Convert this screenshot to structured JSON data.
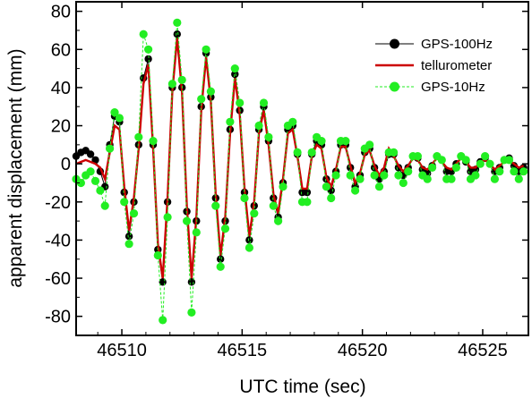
{
  "chart_data": {
    "type": "line",
    "xlabel": "UTC time (sec)",
    "ylabel": "apparent displacement (mm)",
    "xlim": [
      46508.1,
      46526.9
    ],
    "ylim": [
      -90,
      85
    ],
    "xticks": [
      46510,
      46515,
      46520,
      46525
    ],
    "yticks": [
      -80,
      -60,
      -40,
      -20,
      0,
      20,
      40,
      60,
      80
    ],
    "grid": false,
    "legend_position": "top-right",
    "series": [
      {
        "name": "GPS-100Hz",
        "color": "#000000",
        "marker": "circle",
        "x": [
          46508.1,
          46508.3,
          46508.5,
          46508.7,
          46508.9,
          46509.1,
          46509.3,
          46509.5,
          46509.7,
          46509.9,
          46510.1,
          46510.3,
          46510.5,
          46510.7,
          46510.9,
          46511.1,
          46511.3,
          46511.5,
          46511.7,
          46511.9,
          46512.1,
          46512.3,
          46512.5,
          46512.7,
          46512.9,
          46513.1,
          46513.3,
          46513.5,
          46513.7,
          46513.9,
          46514.1,
          46514.3,
          46514.5,
          46514.7,
          46514.9,
          46515.1,
          46515.3,
          46515.5,
          46515.7,
          46515.9,
          46516.1,
          46516.3,
          46516.5,
          46516.7,
          46516.9,
          46517.1,
          46517.3,
          46517.5,
          46517.7,
          46517.9,
          46518.1,
          46518.3,
          46518.5,
          46518.7,
          46518.9,
          46519.1,
          46519.3,
          46519.5,
          46519.7,
          46519.9,
          46520.1,
          46520.3,
          46520.5,
          46520.7,
          46520.9,
          46521.1,
          46521.3,
          46521.5,
          46521.7,
          46521.9,
          46522.1,
          46522.3,
          46522.5,
          46522.7,
          46522.9,
          46523.1,
          46523.3,
          46523.5,
          46523.7,
          46523.9,
          46524.1,
          46524.3,
          46524.5,
          46524.7,
          46524.9,
          46525.1,
          46525.3,
          46525.5,
          46525.7,
          46525.9,
          46526.1,
          46526.3,
          46526.5,
          46526.7
        ],
        "y": [
          4,
          6,
          7,
          5,
          2,
          -4,
          -12,
          10,
          25,
          22,
          -15,
          -38,
          -20,
          10,
          45,
          55,
          10,
          -45,
          -62,
          -20,
          40,
          68,
          40,
          -25,
          -62,
          -30,
          30,
          58,
          35,
          -18,
          -50,
          -30,
          18,
          47,
          28,
          -15,
          -40,
          -22,
          18,
          30,
          12,
          -18,
          -28,
          -10,
          18,
          20,
          5,
          -15,
          -15,
          5,
          12,
          10,
          -8,
          -14,
          -4,
          10,
          10,
          -2,
          -12,
          -6,
          6,
          8,
          -2,
          -8,
          -4,
          5,
          5,
          -2,
          -6,
          -2,
          4,
          3,
          -3,
          -5,
          -1,
          4,
          2,
          -4,
          -4,
          0,
          4,
          1,
          -4,
          -3,
          1,
          3,
          0,
          -4,
          -2,
          2,
          3,
          -1,
          -4,
          -2
        ]
      },
      {
        "name": "tellurometer",
        "color": "#cc0000",
        "marker": "none",
        "x": [
          46508.1,
          46508.3,
          46508.5,
          46508.7,
          46508.9,
          46509.1,
          46509.3,
          46509.5,
          46509.7,
          46509.9,
          46510.1,
          46510.3,
          46510.5,
          46510.7,
          46510.9,
          46511.1,
          46511.3,
          46511.5,
          46511.7,
          46511.9,
          46512.1,
          46512.3,
          46512.5,
          46512.7,
          46512.9,
          46513.1,
          46513.3,
          46513.5,
          46513.7,
          46513.9,
          46514.1,
          46514.3,
          46514.5,
          46514.7,
          46514.9,
          46515.1,
          46515.3,
          46515.5,
          46515.7,
          46515.9,
          46516.1,
          46516.3,
          46516.5,
          46516.7,
          46516.9,
          46517.1,
          46517.3,
          46517.5,
          46517.7,
          46517.9,
          46518.1,
          46518.3,
          46518.5,
          46518.7,
          46518.9,
          46519.1,
          46519.3,
          46519.5,
          46519.7,
          46519.9,
          46520.1,
          46520.3,
          46520.5,
          46520.7,
          46520.9,
          46521.1,
          46521.3,
          46521.5,
          46521.7,
          46521.9,
          46522.1,
          46522.3,
          46522.5,
          46522.7,
          46522.9,
          46523.1,
          46523.3,
          46523.5,
          46523.7,
          46523.9,
          46524.1,
          46524.3,
          46524.5,
          46524.7,
          46524.9,
          46525.1,
          46525.3,
          46525.5,
          46525.7,
          46525.9,
          46526.1,
          46526.3,
          46526.5,
          46526.7
        ],
        "y": [
          0,
          1,
          2,
          1,
          0,
          -2,
          -8,
          6,
          20,
          18,
          -12,
          -35,
          -18,
          8,
          42,
          52,
          8,
          -42,
          -60,
          -18,
          38,
          66,
          38,
          -22,
          -60,
          -28,
          28,
          56,
          33,
          -16,
          -48,
          -28,
          16,
          45,
          26,
          -13,
          -38,
          -20,
          16,
          28,
          10,
          -16,
          -26,
          -8,
          16,
          18,
          4,
          -13,
          -13,
          4,
          10,
          8,
          -7,
          -12,
          -3,
          9,
          9,
          -1,
          -10,
          -5,
          5,
          7,
          -1,
          -6,
          -2,
          8,
          4,
          -1,
          -4,
          -1,
          3,
          2,
          -2,
          -3,
          0,
          3,
          1,
          -2,
          -3,
          0,
          3,
          1,
          -2,
          -2,
          1,
          2,
          0,
          -3,
          -1,
          1,
          2,
          0,
          -2,
          -1
        ]
      },
      {
        "name": "GPS-10Hz",
        "color": "#22ee22",
        "marker": "circle",
        "x": [
          46508.1,
          46508.3,
          46508.5,
          46508.7,
          46508.9,
          46509.1,
          46509.3,
          46509.5,
          46509.7,
          46509.9,
          46510.1,
          46510.3,
          46510.5,
          46510.7,
          46510.9,
          46511.1,
          46511.3,
          46511.5,
          46511.7,
          46511.9,
          46512.1,
          46512.3,
          46512.5,
          46512.7,
          46512.9,
          46513.1,
          46513.3,
          46513.5,
          46513.7,
          46513.9,
          46514.1,
          46514.3,
          46514.5,
          46514.7,
          46514.9,
          46515.1,
          46515.3,
          46515.5,
          46515.7,
          46515.9,
          46516.1,
          46516.3,
          46516.5,
          46516.7,
          46516.9,
          46517.1,
          46517.3,
          46517.5,
          46517.7,
          46517.9,
          46518.1,
          46518.3,
          46518.5,
          46518.7,
          46518.9,
          46519.1,
          46519.3,
          46519.5,
          46519.7,
          46519.9,
          46520.1,
          46520.3,
          46520.5,
          46520.7,
          46520.9,
          46521.1,
          46521.3,
          46521.5,
          46521.7,
          46521.9,
          46522.1,
          46522.3,
          46522.5,
          46522.7,
          46522.9,
          46523.1,
          46523.3,
          46523.5,
          46523.7,
          46523.9,
          46524.1,
          46524.3,
          46524.5,
          46524.7,
          46524.9,
          46525.1,
          46525.3,
          46525.5,
          46525.7,
          46525.9,
          46526.1,
          46526.3,
          46526.5,
          46526.7
        ],
        "y": [
          -8,
          -10,
          -6,
          -4,
          -9,
          -14,
          -22,
          8,
          27,
          24,
          -20,
          -42,
          -26,
          14,
          68,
          60,
          12,
          -48,
          -82,
          -28,
          42,
          74,
          44,
          -30,
          -78,
          -36,
          34,
          60,
          38,
          -22,
          -54,
          -34,
          22,
          50,
          32,
          -18,
          -44,
          -26,
          20,
          32,
          14,
          -22,
          -30,
          -12,
          20,
          22,
          6,
          -20,
          -20,
          6,
          14,
          12,
          -12,
          -18,
          -6,
          12,
          12,
          -6,
          -14,
          -8,
          8,
          10,
          -6,
          -12,
          -6,
          6,
          6,
          -6,
          -10,
          -4,
          4,
          4,
          -6,
          -8,
          -2,
          4,
          2,
          -8,
          -8,
          -2,
          4,
          2,
          -8,
          -6,
          0,
          4,
          0,
          -8,
          -4,
          2,
          2,
          -4,
          -8,
          -4
        ]
      }
    ]
  }
}
